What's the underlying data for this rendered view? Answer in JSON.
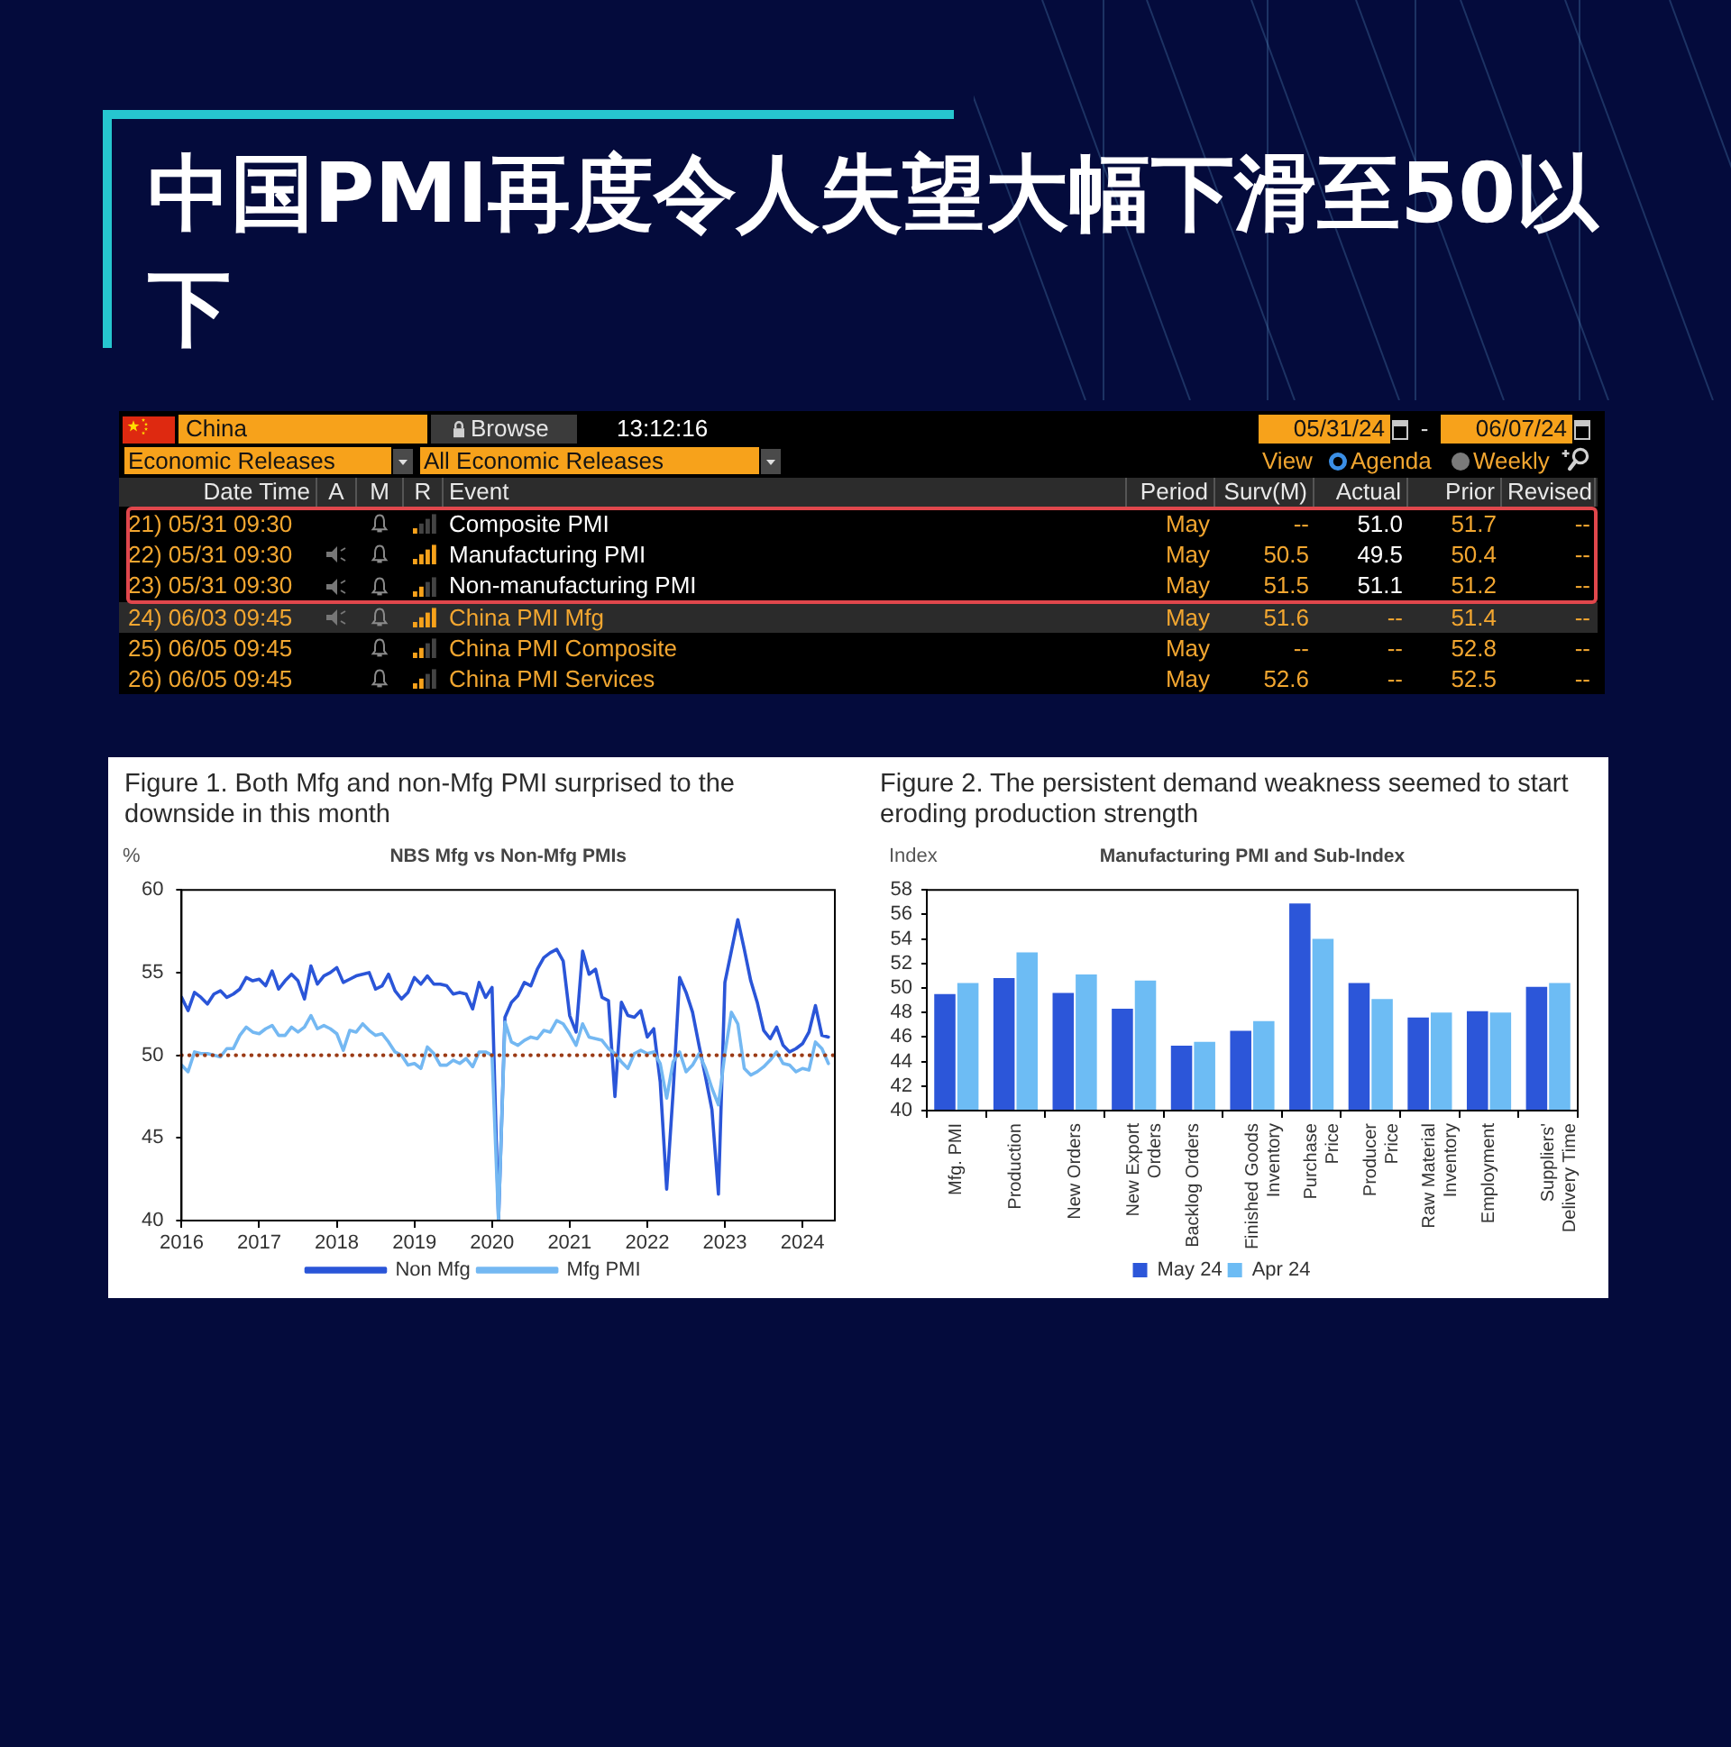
{
  "chart_data": [
    {
      "type": "other",
      "title": "中国PMI再度令人失望大幅下滑至50以下",
      "annotations": [
        "China",
        "Browse",
        "13:12:16",
        "05/31/24",
        "-",
        "06/07/24",
        "Economic Releases",
        "All Economic Releases",
        "View",
        "Agenda",
        "Weekly"
      ],
      "categories": [
        "Date Time",
        "A",
        "M",
        "R",
        "Event",
        "Period",
        "Surv(M)",
        "Actual",
        "Prior",
        "Revised"
      ],
      "cell_labels": [
        [
          "21) 05/31 09:30",
          null,
          null,
          null,
          "Composite PMI",
          "May",
          "--",
          "51.0",
          "51.7",
          "--"
        ],
        [
          "22) 05/31 09:30",
          null,
          null,
          null,
          "Manufacturing PMI",
          "May",
          "50.5",
          "49.5",
          "50.4",
          "--"
        ],
        [
          "23) 05/31 09:30",
          null,
          null,
          null,
          "Non-manufacturing PMI",
          "May",
          "51.5",
          "51.1",
          "51.2",
          "--"
        ],
        [
          "24) 06/03 09:45",
          null,
          null,
          null,
          "China PMI Mfg",
          "May",
          "51.6",
          "--",
          "51.4",
          "--"
        ],
        [
          "25) 06/05 09:45",
          null,
          null,
          null,
          "China PMI Composite",
          "May",
          "--",
          "--",
          "52.8",
          "--"
        ],
        [
          "26) 06/05 09:45",
          null,
          null,
          null,
          "China PMI Services",
          "May",
          "52.6",
          "--",
          "52.5",
          "--"
        ]
      ]
    },
    {
      "type": "line",
      "title": "Figure 1. Both Mfg and non-Mfg PMI surprised to the downside in this month",
      "subtitle": "NBS Mfg vs Non-Mfg PMIs",
      "ylabel": "%",
      "x": [
        "2016-01",
        "2016-02",
        "2016-03",
        "2016-04",
        "2016-05",
        "2016-06",
        "2016-07",
        "2016-08",
        "2016-09",
        "2016-10",
        "2016-11",
        "2016-12",
        "2017-01",
        "2017-02",
        "2017-03",
        "2017-04",
        "2017-05",
        "2017-06",
        "2017-07",
        "2017-08",
        "2017-09",
        "2017-10",
        "2017-11",
        "2017-12",
        "2018-01",
        "2018-02",
        "2018-03",
        "2018-04",
        "2018-05",
        "2018-06",
        "2018-07",
        "2018-08",
        "2018-09",
        "2018-10",
        "2018-11",
        "2018-12",
        "2019-01",
        "2019-02",
        "2019-03",
        "2019-04",
        "2019-05",
        "2019-06",
        "2019-07",
        "2019-08",
        "2019-09",
        "2019-10",
        "2019-11",
        "2019-12",
        "2020-01",
        "2020-02",
        "2020-03",
        "2020-04",
        "2020-05",
        "2020-06",
        "2020-07",
        "2020-08",
        "2020-09",
        "2020-10",
        "2020-11",
        "2020-12",
        "2021-01",
        "2021-02",
        "2021-03",
        "2021-04",
        "2021-05",
        "2021-06",
        "2021-07",
        "2021-08",
        "2021-09",
        "2021-10",
        "2021-11",
        "2021-12",
        "2022-01",
        "2022-02",
        "2022-03",
        "2022-04",
        "2022-05",
        "2022-06",
        "2022-07",
        "2022-08",
        "2022-09",
        "2022-10",
        "2022-11",
        "2022-12",
        "2023-01",
        "2023-02",
        "2023-03",
        "2023-04",
        "2023-05",
        "2023-06",
        "2023-07",
        "2023-08",
        "2023-09",
        "2023-10",
        "2023-11",
        "2023-12",
        "2024-01",
        "2024-02",
        "2024-03",
        "2024-04",
        "2024-05"
      ],
      "series": [
        {
          "name": "Non Mfg",
          "color": "#2a55d8",
          "values": [
            53.5,
            52.7,
            53.8,
            53.5,
            53.1,
            53.7,
            53.9,
            53.5,
            53.7,
            54.0,
            54.7,
            54.5,
            54.6,
            54.2,
            55.1,
            54.0,
            54.5,
            54.9,
            54.5,
            53.4,
            55.4,
            54.3,
            54.8,
            55.0,
            55.3,
            54.4,
            54.6,
            54.8,
            54.9,
            55.0,
            54.0,
            54.2,
            54.9,
            53.9,
            53.4,
            53.8,
            54.7,
            54.3,
            54.8,
            54.3,
            54.3,
            54.2,
            53.7,
            53.8,
            53.7,
            52.8,
            54.4,
            53.5,
            54.1,
            40,
            52.3,
            53.2,
            53.6,
            54.4,
            54.2,
            55.2,
            55.9,
            56.2,
            56.4,
            55.7,
            52.4,
            51.4,
            56.3,
            54.9,
            55.2,
            53.5,
            53.3,
            47.5,
            53.2,
            52.4,
            52.3,
            52.7,
            51.1,
            51.6,
            48.4,
            41.9,
            47.8,
            54.7,
            53.8,
            52.6,
            50.6,
            48.7,
            46.7,
            41.6,
            54.4,
            56.3,
            58.2,
            56.4,
            54.5,
            53.2,
            51.5,
            51.0,
            51.7,
            50.6,
            50.2,
            50.4,
            50.7,
            51.4,
            53.0,
            51.2,
            51.1
          ]
        },
        {
          "name": "Mfg PMI",
          "color": "#74b8f2",
          "values": [
            49.4,
            49.0,
            50.2,
            50.1,
            50.1,
            50.0,
            49.9,
            50.4,
            50.4,
            51.2,
            51.7,
            51.4,
            51.3,
            51.6,
            51.8,
            51.2,
            51.2,
            51.7,
            51.4,
            51.7,
            52.4,
            51.6,
            51.8,
            51.6,
            51.3,
            50.3,
            51.5,
            51.4,
            51.9,
            51.5,
            51.2,
            51.3,
            50.8,
            50.2,
            50.0,
            49.4,
            49.5,
            49.2,
            50.5,
            50.1,
            49.4,
            49.4,
            49.7,
            49.5,
            49.8,
            49.3,
            50.2,
            50.2,
            50.0,
            40,
            52.0,
            50.8,
            50.6,
            50.9,
            51.1,
            51.0,
            51.5,
            51.4,
            52.1,
            51.9,
            51.3,
            50.6,
            51.9,
            51.1,
            51.0,
            50.9,
            50.4,
            50.1,
            49.6,
            49.2,
            50.1,
            50.3,
            50.1,
            50.2,
            49.5,
            47.4,
            49.6,
            50.2,
            49.0,
            49.4,
            50.1,
            49.2,
            48.0,
            47.0,
            50.1,
            52.6,
            51.9,
            49.2,
            48.8,
            49.0,
            49.3,
            49.7,
            50.2,
            49.5,
            49.4,
            49.0,
            49.2,
            49.1,
            50.8,
            50.4,
            49.5
          ]
        }
      ],
      "xlim": [
        "2016-01",
        "2024-06"
      ],
      "xticks": [
        "2016",
        "2017",
        "2018",
        "2019",
        "2020",
        "2021",
        "2022",
        "2023",
        "2024"
      ],
      "ylim": [
        40,
        60
      ],
      "yticks": [
        40,
        45,
        50,
        55,
        60
      ],
      "ref_lines": [
        {
          "axis": "y",
          "value": 50,
          "color": "#9b3b16",
          "line_style": "dotted"
        }
      ],
      "legend": "bottom"
    },
    {
      "type": "bar",
      "title": "Figure 2. The persistent demand weakness seemed to start eroding production strength",
      "subtitle": "Manufacturing PMI and Sub-Index",
      "ylabel": "Index",
      "categories": [
        "Mfg. PMI",
        "Production",
        "New Orders",
        "New Export\nOrders",
        "Backlog Orders",
        "Finished Goods\nInventory",
        "Purchase\nPrice",
        "Producer\nPrice",
        "Raw Material\nInventory",
        "Employment",
        "Suppliers'\nDelivery Time"
      ],
      "series": [
        {
          "name": "May 24",
          "color": "#2c56d9",
          "values": [
            49.5,
            50.8,
            49.6,
            48.3,
            45.3,
            46.5,
            56.9,
            50.4,
            47.6,
            48.1,
            50.1
          ]
        },
        {
          "name": "Apr 24",
          "color": "#6dbcf4",
          "values": [
            50.4,
            52.9,
            51.1,
            50.6,
            45.6,
            47.3,
            54.0,
            49.1,
            48.0,
            48.0,
            50.4
          ]
        }
      ],
      "ylim": [
        40,
        58
      ],
      "yticks": [
        40,
        42,
        44,
        46,
        48,
        50,
        52,
        54,
        56,
        58
      ],
      "legend": "bottom"
    }
  ]
}
